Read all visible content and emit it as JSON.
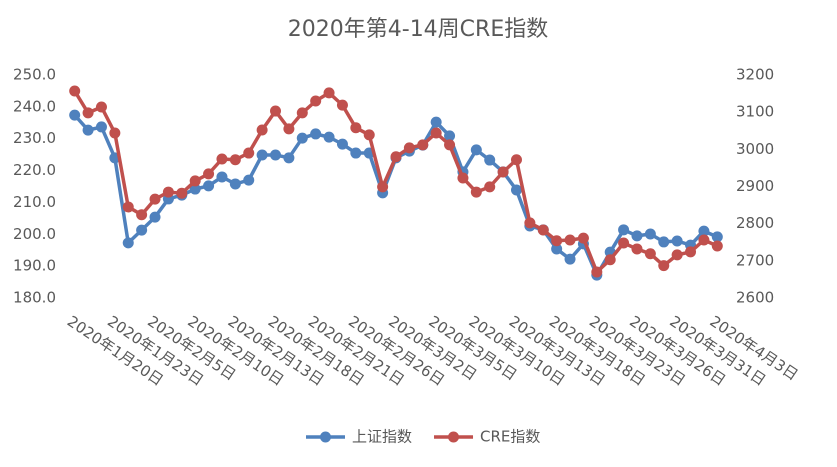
{
  "chart_data": {
    "type": "line",
    "title": "2020年第4-14周CRE指数",
    "categories": [
      "2020年1月20日",
      null,
      null,
      "2020年1月23日",
      null,
      null,
      "2020年2月5日",
      null,
      null,
      "2020年2月10日",
      null,
      null,
      "2020年2月13日",
      null,
      null,
      "2020年2月18日",
      null,
      null,
      "2020年2月21日",
      null,
      null,
      "2020年2月26日",
      null,
      null,
      "2020年3月2日",
      null,
      null,
      "2020年3月5日",
      null,
      null,
      "2020年3月10日",
      null,
      null,
      "2020年3月13日",
      null,
      null,
      "2020年3月18日",
      null,
      null,
      "2020年3月23日",
      null,
      null,
      "2020年3月26日",
      null,
      null,
      "2020年3月31日",
      null,
      null,
      "2020年4月3日"
    ],
    "series": [
      {
        "name": "上证指数",
        "color": "#4f81bd",
        "values": [
          237.4,
          232.7,
          233.7,
          224,
          197.3,
          201.3,
          205.4,
          211.1,
          212.3,
          214.2,
          215.2,
          218,
          215.8,
          217,
          224.9,
          224.9,
          224,
          230.2,
          231.5,
          230.5,
          228.3,
          225.5,
          225.5,
          213,
          224,
          226.1,
          228,
          235.2,
          230.9,
          219.6,
          226.5,
          223.3,
          219.6,
          213.9,
          202.6,
          201.4,
          195.4,
          192.2,
          197,
          187.2,
          194.4,
          201.4,
          199.5,
          200.1,
          197.6,
          197.9,
          196.6,
          201,
          199.2
        ]
      },
      {
        "name": "CRE指数",
        "color": "#c0504d",
        "axis": "y2",
        "values": [
          3157,
          3098,
          3114,
          3044,
          2845,
          2824,
          2866,
          2885,
          2882,
          2915,
          2934,
          2974,
          2972,
          2990,
          3052,
          3103,
          3055,
          3098,
          3130,
          3152,
          3119,
          3058,
          3039,
          2899,
          2980,
          3004,
          3012,
          3044,
          3012,
          2923,
          2885,
          2899,
          2939,
          2972,
          2802,
          2783,
          2754,
          2756,
          2761,
          2670,
          2703,
          2748,
          2732,
          2719,
          2687,
          2716,
          2724,
          2756,
          2740
        ]
      }
    ],
    "ylim": [
      180,
      250
    ],
    "yticks": [
      {
        "value": 180,
        "label": "180.0"
      },
      {
        "value": 190,
        "label": "190.0"
      },
      {
        "value": 200,
        "label": "200.0"
      },
      {
        "value": 210,
        "label": "210.0"
      },
      {
        "value": 220,
        "label": "220.0"
      },
      {
        "value": 230,
        "label": "230.0"
      },
      {
        "value": 240,
        "label": "240.0"
      },
      {
        "value": 250,
        "label": "250.0"
      }
    ],
    "y2lim": [
      2600,
      3200
    ],
    "y2ticks": [
      2600,
      2700,
      2800,
      2900,
      3000,
      3100,
      3200
    ],
    "legend": "bottom",
    "grid": false
  }
}
